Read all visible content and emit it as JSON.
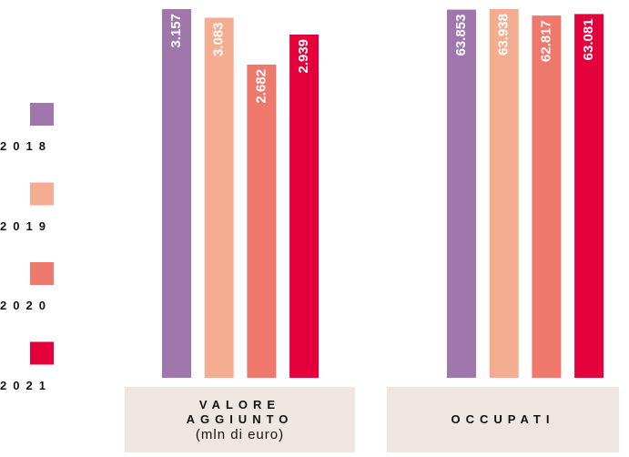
{
  "chart_data": {
    "type": "bar",
    "categories": [
      "VALORE AGGIUNTO",
      "OCCUPATI"
    ],
    "unit_note": "(mln di euro)",
    "series": [
      {
        "name": "2018",
        "color": "#a077ad",
        "values": [
          3157,
          63853
        ],
        "value_labels": [
          "3.157",
          "63.853"
        ]
      },
      {
        "name": "2019",
        "color": "#f5ad91",
        "values": [
          3083,
          63938
        ],
        "value_labels": [
          "3.083",
          "63.938"
        ]
      },
      {
        "name": "2020",
        "color": "#ef786c",
        "values": [
          2682,
          62817
        ],
        "value_labels": [
          "2.682",
          "62.817"
        ]
      },
      {
        "name": "2021",
        "color": "#e4003a",
        "values": [
          2939,
          63081
        ],
        "value_labels": [
          "2.939",
          "63.081"
        ]
      }
    ]
  }
}
